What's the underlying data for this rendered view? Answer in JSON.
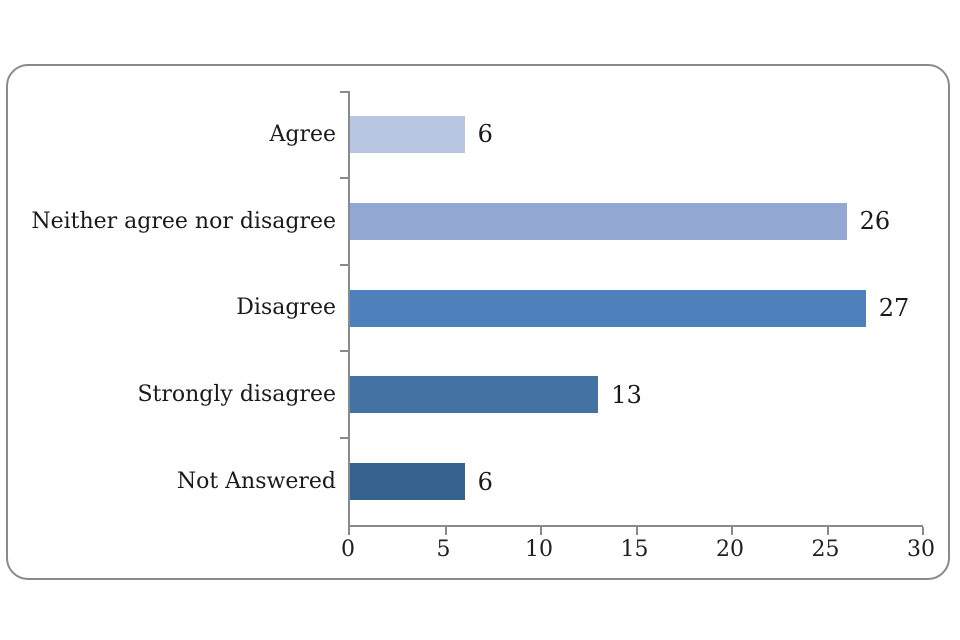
{
  "frame": {
    "border_color": "#8a8a8a",
    "background": "#ffffff"
  },
  "chart_data": {
    "type": "bar",
    "orientation": "horizontal",
    "title": "",
    "xlabel": "",
    "ylabel": "",
    "categories": [
      "Agree",
      "Neither agree nor disagree",
      "Disagree",
      "Strongly disagree",
      "Not Answered"
    ],
    "values": [
      6,
      26,
      27,
      13,
      6
    ],
    "data_labels": [
      "6",
      "26",
      "27",
      "13",
      "6"
    ],
    "bar_colors": [
      "#b9c6e1",
      "#92a7d1",
      "#4e80bc",
      "#4472a3",
      "#37618e"
    ],
    "xlim": [
      0,
      30
    ],
    "x_ticks": [
      0,
      5,
      10,
      15,
      20,
      25,
      30
    ],
    "grid": false,
    "legend": false,
    "axis_color": "#8a8a8a",
    "text_color": "#1a1a1a"
  }
}
